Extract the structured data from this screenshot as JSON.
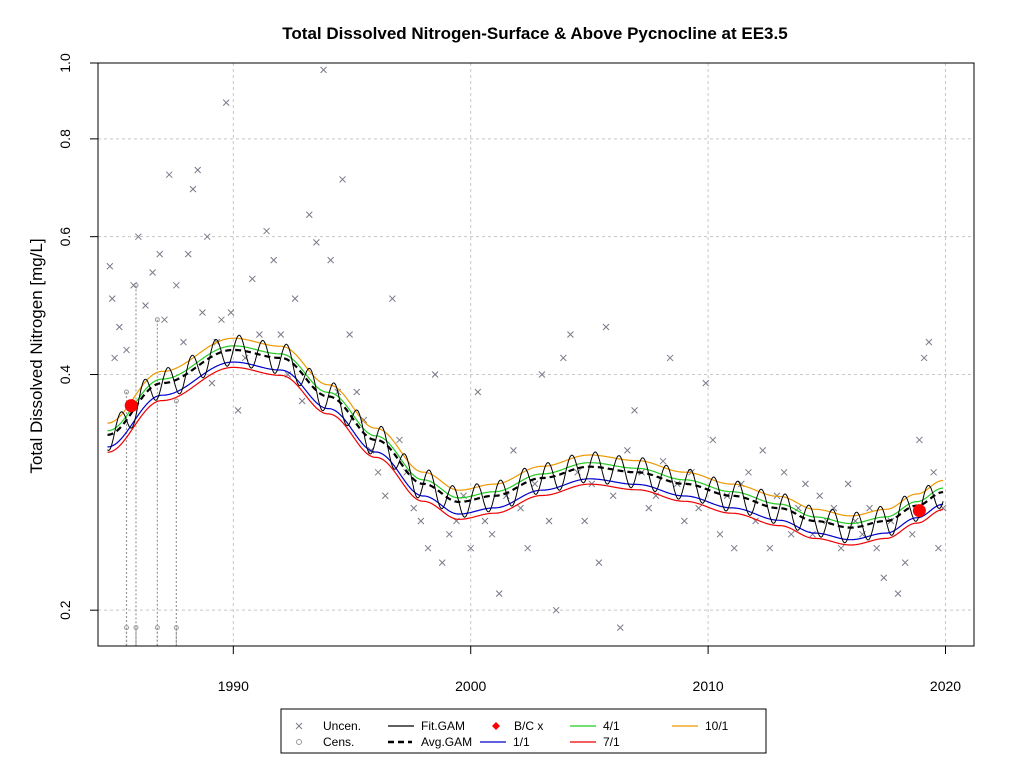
{
  "chart_data": {
    "type": "scatter",
    "title": "Total Dissolved Nitrogen-Surface & Above Pycnocline at EE3.5",
    "xlabel": "",
    "ylabel": "Total Dissolved Nitrogen [mg/L]",
    "xlim": [
      1984.3,
      2021.2
    ],
    "ylim": [
      0.18,
      1.0
    ],
    "y_scale": "log",
    "x_ticks": [
      1990,
      2000,
      2010,
      2020
    ],
    "y_ticks": [
      0.2,
      0.4,
      0.6,
      0.8,
      1.0
    ],
    "y_tick_labels": [
      "0.2",
      "0.4",
      "0.6",
      "0.8",
      "1.0"
    ],
    "grid": true,
    "legend_position": "bottom",
    "colors": {
      "uncensored": "#7a7a8a",
      "censored": "#9a9a9a",
      "fit_gam": "#000000",
      "avg_gam": "#000000",
      "bc": "#ff0000",
      "d1_1": "#0000cc",
      "d4_1": "#22cc22",
      "d7_1": "#ee0000",
      "d10_1": "#ee9900",
      "grid": "#c8c8c8"
    },
    "series": [
      {
        "name": "Uncen.",
        "key": "uncensored",
        "marker": "x",
        "generated_from_description": true
      },
      {
        "name": "Cens.",
        "key": "censored",
        "marker": "circle"
      },
      {
        "name": "Fit.GAM",
        "key": "fit_gam",
        "line": "solid"
      },
      {
        "name": "Avg.GAM",
        "key": "avg_gam",
        "line": "dashed-thick"
      },
      {
        "name": "B/C x",
        "key": "bc",
        "marker": "diamond"
      },
      {
        "name": "1/1",
        "key": "d1_1",
        "line": "solid"
      },
      {
        "name": "4/1",
        "key": "d4_1",
        "line": "solid"
      },
      {
        "name": "7/1",
        "key": "d7_1",
        "line": "solid"
      },
      {
        "name": "10/1",
        "key": "d10_1",
        "line": "solid"
      }
    ],
    "avg_gam_trend": {
      "x": [
        1984.7,
        1987,
        1990,
        1992,
        1994,
        1996,
        1998,
        1999.5,
        2001,
        2003,
        2005,
        2007,
        2009,
        2011,
        2013,
        2014.5,
        2016,
        2017.5,
        2018.8,
        2019.9
      ],
      "y": [
        0.335,
        0.39,
        0.43,
        0.42,
        0.375,
        0.33,
        0.29,
        0.275,
        0.28,
        0.295,
        0.305,
        0.3,
        0.29,
        0.28,
        0.27,
        0.26,
        0.255,
        0.26,
        0.272,
        0.283
      ]
    },
    "bc_points": [
      {
        "x": 1985.7,
        "y": 0.365
      },
      {
        "x": 2018.9,
        "y": 0.268
      }
    ],
    "uncensored_points": [
      [
        1984.8,
        0.55
      ],
      [
        1984.9,
        0.5
      ],
      [
        1985.0,
        0.42
      ],
      [
        1985.2,
        0.46
      ],
      [
        1985.5,
        0.43
      ],
      [
        1985.8,
        0.52
      ],
      [
        1986.0,
        0.6
      ],
      [
        1986.3,
        0.49
      ],
      [
        1986.6,
        0.54
      ],
      [
        1986.9,
        0.57
      ],
      [
        1987.1,
        0.47
      ],
      [
        1987.3,
        0.72
      ],
      [
        1987.6,
        0.52
      ],
      [
        1987.9,
        0.44
      ],
      [
        1988.1,
        0.57
      ],
      [
        1988.3,
        0.69
      ],
      [
        1988.5,
        0.73
      ],
      [
        1988.7,
        0.48
      ],
      [
        1988.9,
        0.6
      ],
      [
        1989.1,
        0.39
      ],
      [
        1989.3,
        0.44
      ],
      [
        1989.5,
        0.47
      ],
      [
        1989.7,
        0.89
      ],
      [
        1989.9,
        0.48
      ],
      [
        1990.2,
        0.36
      ],
      [
        1990.5,
        0.42
      ],
      [
        1990.8,
        0.53
      ],
      [
        1991.1,
        0.45
      ],
      [
        1991.4,
        0.61
      ],
      [
        1991.7,
        0.56
      ],
      [
        1992.0,
        0.45
      ],
      [
        1992.3,
        0.4
      ],
      [
        1992.6,
        0.5
      ],
      [
        1992.9,
        0.37
      ],
      [
        1993.2,
        0.64
      ],
      [
        1993.5,
        0.59
      ],
      [
        1993.8,
        0.98
      ],
      [
        1994.1,
        0.56
      ],
      [
        1994.4,
        0.38
      ],
      [
        1994.6,
        0.71
      ],
      [
        1994.9,
        0.45
      ],
      [
        1995.2,
        0.38
      ],
      [
        1995.5,
        0.35
      ],
      [
        1995.8,
        0.32
      ],
      [
        1996.1,
        0.3
      ],
      [
        1996.4,
        0.28
      ],
      [
        1996.7,
        0.5
      ],
      [
        1997.0,
        0.33
      ],
      [
        1997.3,
        0.3
      ],
      [
        1997.6,
        0.27
      ],
      [
        1997.9,
        0.26
      ],
      [
        1998.2,
        0.24
      ],
      [
        1998.5,
        0.4
      ],
      [
        1998.8,
        0.23
      ],
      [
        1999.1,
        0.25
      ],
      [
        1999.4,
        0.26
      ],
      [
        1999.7,
        0.28
      ],
      [
        2000.0,
        0.24
      ],
      [
        2000.3,
        0.38
      ],
      [
        2000.6,
        0.26
      ],
      [
        2000.9,
        0.25
      ],
      [
        2001.2,
        0.21
      ],
      [
        2001.5,
        0.28
      ],
      [
        2001.8,
        0.32
      ],
      [
        2002.1,
        0.27
      ],
      [
        2002.4,
        0.24
      ],
      [
        2002.7,
        0.29
      ],
      [
        2003.0,
        0.4
      ],
      [
        2003.3,
        0.26
      ],
      [
        2003.6,
        0.2
      ],
      [
        2003.9,
        0.42
      ],
      [
        2004.2,
        0.45
      ],
      [
        2004.5,
        0.3
      ],
      [
        2004.8,
        0.26
      ],
      [
        2005.1,
        0.29
      ],
      [
        2005.4,
        0.23
      ],
      [
        2005.7,
        0.46
      ],
      [
        2006.0,
        0.28
      ],
      [
        2006.3,
        0.19
      ],
      [
        2006.6,
        0.32
      ],
      [
        2006.9,
        0.36
      ],
      [
        2007.2,
        0.3
      ],
      [
        2007.5,
        0.27
      ],
      [
        2007.8,
        0.28
      ],
      [
        2008.1,
        0.31
      ],
      [
        2008.4,
        0.42
      ],
      [
        2008.7,
        0.29
      ],
      [
        2009.0,
        0.26
      ],
      [
        2009.3,
        0.3
      ],
      [
        2009.6,
        0.27
      ],
      [
        2009.9,
        0.39
      ],
      [
        2010.2,
        0.33
      ],
      [
        2010.5,
        0.25
      ],
      [
        2010.8,
        0.28
      ],
      [
        2011.1,
        0.24
      ],
      [
        2011.4,
        0.29
      ],
      [
        2011.7,
        0.3
      ],
      [
        2012.0,
        0.26
      ],
      [
        2012.3,
        0.32
      ],
      [
        2012.6,
        0.24
      ],
      [
        2012.9,
        0.28
      ],
      [
        2013.2,
        0.3
      ],
      [
        2013.5,
        0.25
      ],
      [
        2013.8,
        0.27
      ],
      [
        2014.1,
        0.29
      ],
      [
        2014.4,
        0.25
      ],
      [
        2014.7,
        0.28
      ],
      [
        2015.0,
        0.26
      ],
      [
        2015.3,
        0.27
      ],
      [
        2015.6,
        0.24
      ],
      [
        2015.9,
        0.29
      ],
      [
        2016.2,
        0.26
      ],
      [
        2016.5,
        0.25
      ],
      [
        2016.8,
        0.27
      ],
      [
        2017.1,
        0.24
      ],
      [
        2017.4,
        0.22
      ],
      [
        2017.7,
        0.26
      ],
      [
        2018.0,
        0.21
      ],
      [
        2018.3,
        0.23
      ],
      [
        2018.6,
        0.25
      ],
      [
        2018.9,
        0.33
      ],
      [
        2019.1,
        0.42
      ],
      [
        2019.3,
        0.44
      ],
      [
        2019.5,
        0.3
      ],
      [
        2019.7,
        0.24
      ],
      [
        2019.9,
        0.27
      ]
    ],
    "censored_points": [
      [
        1985.5,
        0.19
      ],
      [
        1985.5,
        0.38
      ],
      [
        1985.9,
        0.19
      ],
      [
        1985.9,
        0.52
      ],
      [
        1986.8,
        0.19
      ],
      [
        1986.8,
        0.47
      ],
      [
        1987.6,
        0.19
      ],
      [
        1987.6,
        0.37
      ]
    ],
    "notes": []
  },
  "legend": {
    "items": [
      {
        "label": "Uncen.",
        "key": "uncensored"
      },
      {
        "label": "Cens.",
        "key": "censored"
      },
      {
        "label": "Fit.GAM",
        "key": "fit_gam"
      },
      {
        "label": "Avg.GAM",
        "key": "avg_gam"
      },
      {
        "label": "B/C x",
        "key": "bc"
      },
      {
        "label": "1/1",
        "key": "d1_1"
      },
      {
        "label": "4/1",
        "key": "d4_1"
      },
      {
        "label": "7/1",
        "key": "d7_1"
      },
      {
        "label": "10/1",
        "key": "d10_1"
      }
    ]
  }
}
